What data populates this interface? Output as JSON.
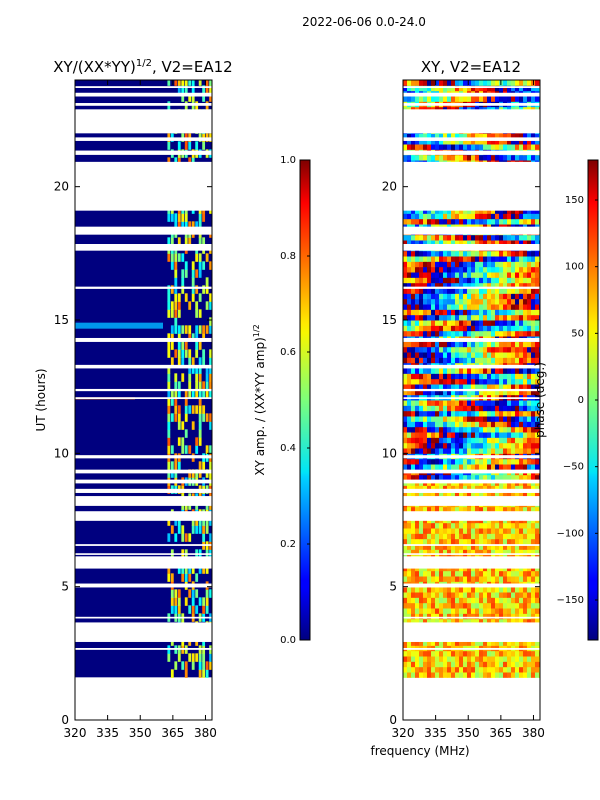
{
  "figure": {
    "suptitle": "2022-06-06 0.0-24.0",
    "xlabel": "frequency (MHz)",
    "colors": {
      "background_mask": "#00007f",
      "gap": "#ffffff"
    }
  },
  "chart_data": [
    {
      "type": "heatmap",
      "title": "XY/(XX*YY)^{1/2}, V2=EA12",
      "title_main": "XY/(XX*YY)",
      "title_exp": "1/2",
      "title_suffix": ", V2=EA12",
      "xlabel": "",
      "ylabel": "UT (hours)",
      "xlim": [
        320,
        383
      ],
      "ylim": [
        0,
        24
      ],
      "xticks": [
        320,
        335,
        350,
        365,
        380
      ],
      "yticks": [
        0,
        5,
        10,
        15,
        20
      ],
      "data_range_hours": [
        1.6,
        24.0
      ],
      "colorbar": {
        "label": "XY amp. / (XX*YY amp)^{1/2}",
        "label_main": "XY amp. / (XX*YY amp)",
        "label_exp": "1/2",
        "range": [
          0.0,
          1.0
        ],
        "ticks": [
          "0.0",
          "0.2",
          "0.4",
          "0.6",
          "0.8",
          "1.0"
        ]
      }
    },
    {
      "type": "heatmap",
      "title": "XY, V2=EA12",
      "xlabel": "",
      "ylabel": "",
      "xlim": [
        320,
        383
      ],
      "ylim": [
        0,
        24
      ],
      "xticks": [
        320,
        335,
        350,
        365,
        380
      ],
      "yticks": [
        0,
        5,
        10,
        15,
        20
      ],
      "data_range_hours": [
        1.6,
        24.0
      ],
      "colorbar": {
        "label": "phase (deg.)",
        "range": [
          -180,
          180
        ],
        "ticks": [
          "−150",
          "−100",
          "−50",
          "0",
          "50",
          "100",
          "150"
        ]
      }
    }
  ]
}
